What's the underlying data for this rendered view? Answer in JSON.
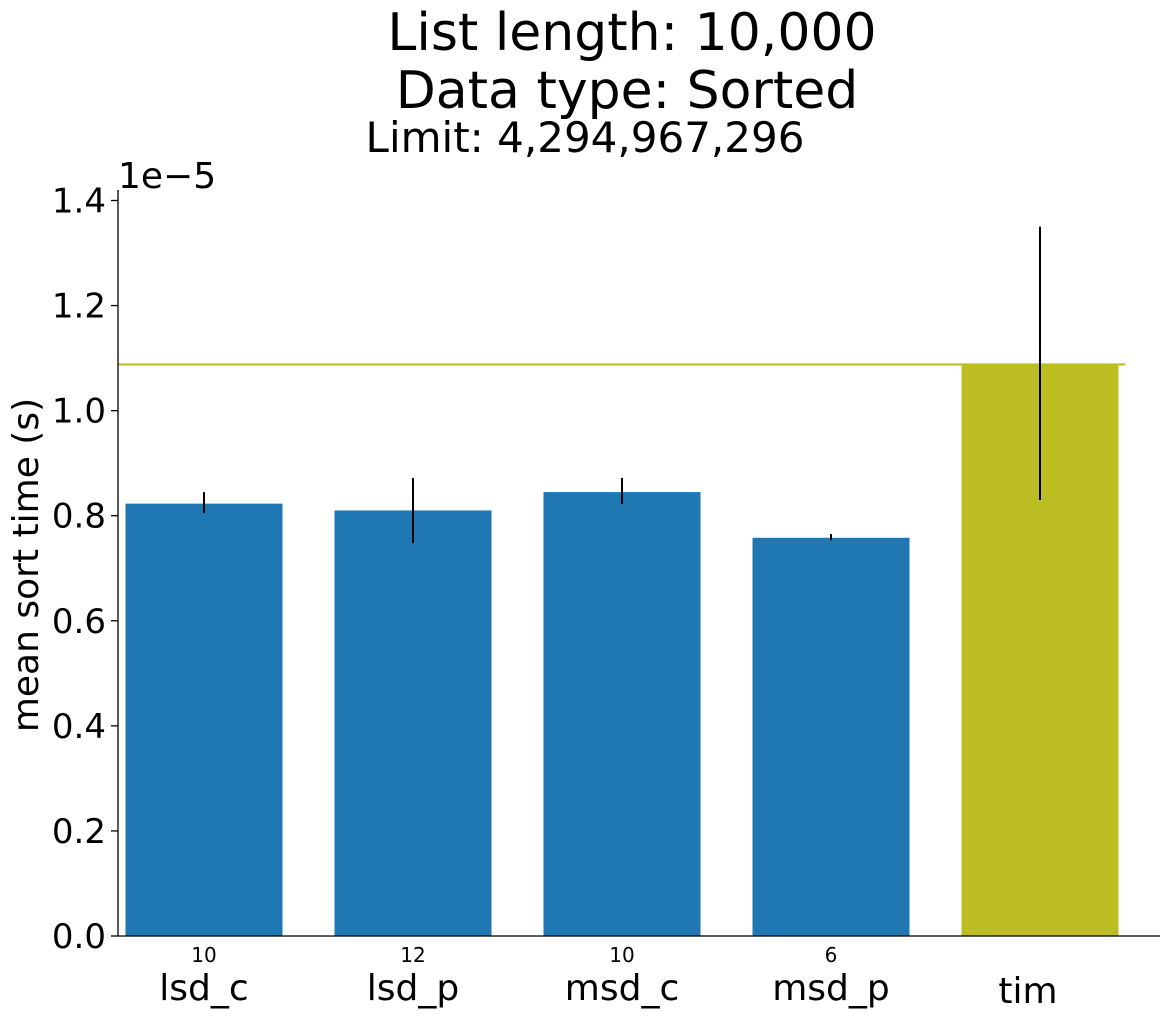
{
  "chart_data": {
    "type": "bar",
    "title_lines": [
      "List length: 10,000",
      "Data type: Sorted"
    ],
    "subtitle": "Limit: 4,294,967,296",
    "ylabel": "mean sort time (s)",
    "offset_label": "1e−5",
    "ylim": [
      0,
      1.42
    ],
    "yticks": [
      0.0,
      0.2,
      0.4,
      0.6,
      0.8,
      1.0,
      1.2,
      1.4
    ],
    "ytick_labels": [
      "0.0",
      "0.2",
      "0.4",
      "0.6",
      "0.8",
      "1.0",
      "1.2",
      "1.4"
    ],
    "categories": [
      "lsd_c",
      "lsd_p",
      "msd_c",
      "msd_p",
      "tim"
    ],
    "values": [
      0.823,
      0.81,
      0.845,
      0.758,
      1.088
    ],
    "errors": [
      [
        0.805,
        0.845
      ],
      [
        0.748,
        0.872
      ],
      [
        0.822,
        0.872
      ],
      [
        0.753,
        0.765
      ],
      [
        0.83,
        1.35
      ]
    ],
    "bar_labels": [
      "10",
      "12",
      "10",
      "6",
      ""
    ],
    "bar_colors": [
      "#1f77b4",
      "#1f77b4",
      "#1f77b4",
      "#1f77b4",
      "#bcbd22"
    ],
    "reference_line": {
      "value": 1.088,
      "color": "#bcbd22"
    },
    "grid": false
  }
}
